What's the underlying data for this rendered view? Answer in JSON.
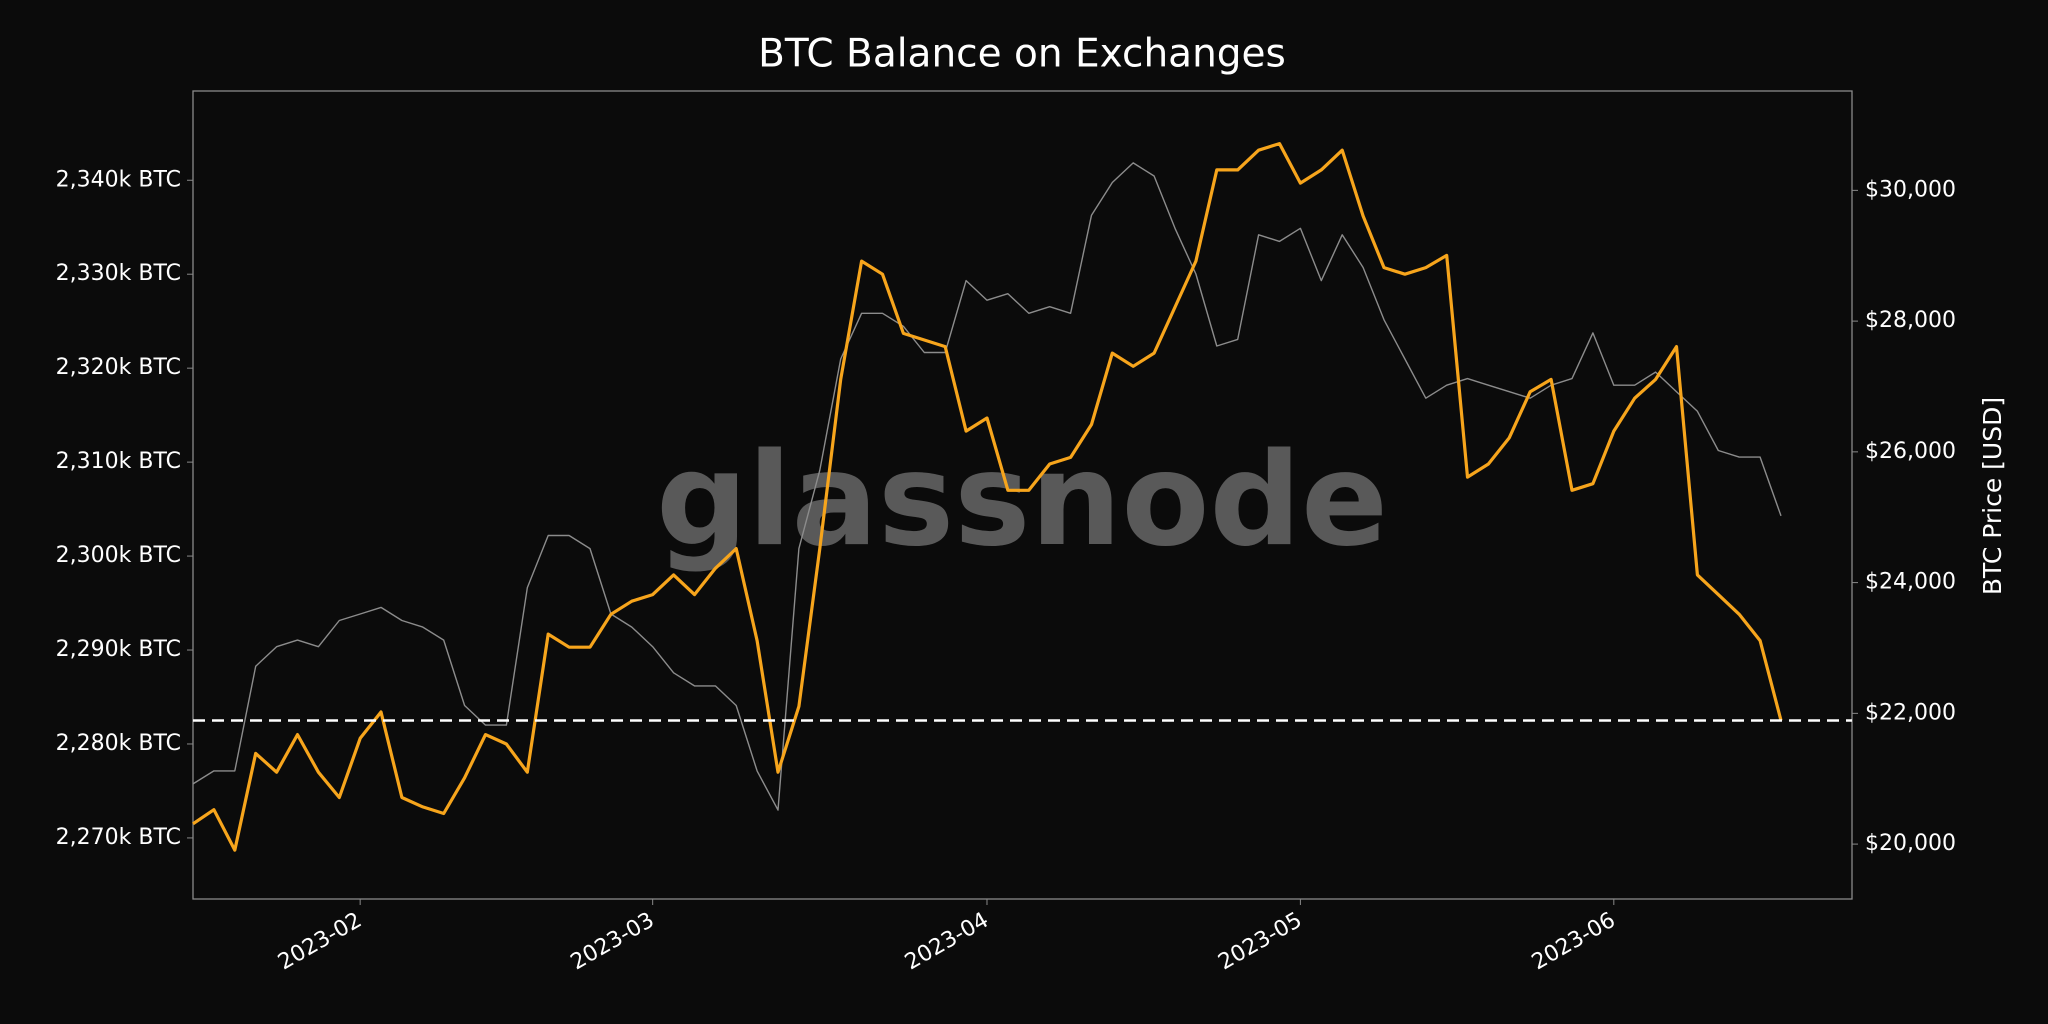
{
  "chart_data": {
    "type": "line",
    "title": "BTC Balance on Exchanges",
    "watermark": "glassnode",
    "y2_label": "BTC Price [USD]",
    "categories": [
      null,
      null,
      null,
      null,
      null,
      null,
      null,
      null,
      "2023-02",
      null,
      null,
      null,
      null,
      null,
      null,
      null,
      null,
      null,
      null,
      null,
      null,
      null,
      "2023-03",
      null,
      null,
      null,
      null,
      null,
      null,
      null,
      null,
      null,
      null,
      null,
      null,
      null,
      null,
      null,
      "2023-04",
      null,
      null,
      null,
      null,
      null,
      null,
      null,
      null,
      null,
      null,
      null,
      null,
      null,
      null,
      "2023-05",
      null,
      null,
      null,
      null,
      null,
      null,
      null,
      null,
      null,
      null,
      null,
      null,
      null,
      null,
      "2023-06",
      null,
      null,
      null,
      null,
      null,
      null,
      null,
      null,
      null,
      null,
      null
    ],
    "series": [
      {
        "color": "#f7a51c",
        "axis": "y",
        "values": [
          2271500,
          2273000,
          2268700,
          2279000,
          2277000,
          2281000,
          2277000,
          2274300,
          2280600,
          2283400,
          2274300,
          2273300,
          2272600,
          2276400,
          2281000,
          2280000,
          2277000,
          2291700,
          2290300,
          2290300,
          2293800,
          2295200,
          2295900,
          2298000,
          2295900,
          2298700,
          2300800,
          2291000,
          2277000,
          2284000,
          2300800,
          2318800,
          2331400,
          2330000,
          2323700,
          2323000,
          2322300,
          2313300,
          2314700,
          2307000,
          2307000,
          2309800,
          2310500,
          2314000,
          2321600,
          2320200,
          2321600,
          2326500,
          2331400,
          2341100,
          2341100,
          2343200,
          2343900,
          2339700,
          2341100,
          2343200,
          2336200,
          2330700,
          2330000,
          2330700,
          2332000,
          2308400,
          2309800,
          2312600,
          2317500,
          2318800,
          2307000,
          2307700,
          2313300,
          2316800,
          2318800,
          2322300,
          2298000,
          2295900,
          2293800,
          2291000,
          2282500,
          null,
          null,
          null
        ]
      },
      {
        "color": "#8c8c8c",
        "axis": "y2",
        "values": [
          20920,
          21120,
          21120,
          22720,
          23020,
          23120,
          23020,
          23420,
          23520,
          23620,
          23420,
          23320,
          23120,
          22120,
          21820,
          21820,
          23920,
          24720,
          24720,
          24520,
          23520,
          23320,
          23020,
          22620,
          22420,
          22420,
          22120,
          21120,
          20520,
          24520,
          25720,
          27420,
          28120,
          28120,
          27920,
          27520,
          27520,
          28620,
          28320,
          28420,
          28120,
          28220,
          28120,
          29620,
          30120,
          30420,
          30220,
          29420,
          28720,
          27620,
          27720,
          29320,
          29220,
          29420,
          28620,
          29320,
          28820,
          28020,
          27420,
          26820,
          27020,
          27120,
          27020,
          26920,
          26820,
          27020,
          27120,
          27820,
          27020,
          27020,
          27220,
          26920,
          26620,
          26020,
          25920,
          25920,
          25020,
          null,
          null,
          null
        ]
      }
    ],
    "ylim": [
      2263500,
      2349500
    ],
    "yticks": [
      {
        "value": 2270000,
        "label": "2,270k BTC"
      },
      {
        "value": 2280000,
        "label": "2,280k BTC"
      },
      {
        "value": 2290000,
        "label": "2,290k BTC"
      },
      {
        "value": 2300000,
        "label": "2,300k BTC"
      },
      {
        "value": 2310000,
        "label": "2,310k BTC"
      },
      {
        "value": 2320000,
        "label": "2,320k BTC"
      },
      {
        "value": 2330000,
        "label": "2,330k BTC"
      },
      {
        "value": 2340000,
        "label": "2,340k BTC"
      }
    ],
    "y2lim": [
      19160,
      31520
    ],
    "y2ticks": [
      {
        "value": 20000,
        "label": "$20,000"
      },
      {
        "value": 22000,
        "label": "$22,000"
      },
      {
        "value": 24000,
        "label": "$24,000"
      },
      {
        "value": 26000,
        "label": "$26,000"
      },
      {
        "value": 28000,
        "label": "$28,000"
      },
      {
        "value": 30000,
        "label": "$30,000"
      }
    ],
    "hline": 2282500,
    "grid": false
  }
}
